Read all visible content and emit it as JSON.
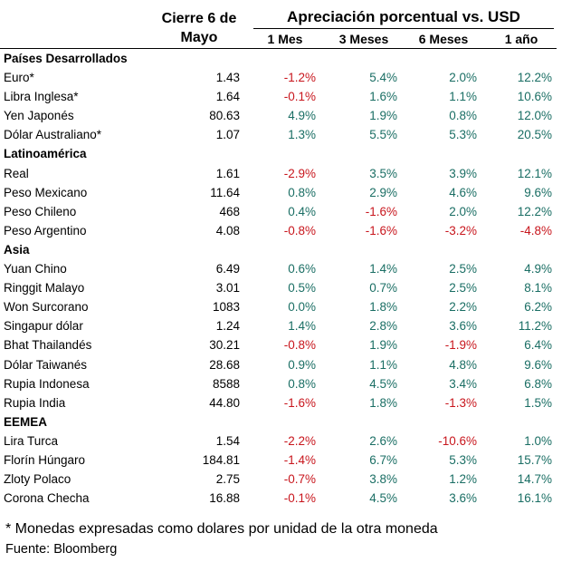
{
  "header": {
    "close_line1": "Cierre 6 de",
    "close_line2": "Mayo",
    "appreciation_title": "Apreciación porcentual vs. USD",
    "periods": [
      "1 Mes",
      "3 Meses",
      "6 Meses",
      "1 año"
    ]
  },
  "colors": {
    "positive": "#1a6e64",
    "negative": "#c8161d"
  },
  "rows": [
    {
      "type": "section",
      "name": "Países Desarrollados"
    },
    {
      "type": "data",
      "name": "Euro*",
      "close": "1.43",
      "m1": "-1.2%",
      "m3": "5.4%",
      "m6": "2.0%",
      "y1": "12.2%"
    },
    {
      "type": "data",
      "name": "Libra Inglesa*",
      "close": "1.64",
      "m1": "-0.1%",
      "m3": "1.6%",
      "m6": "1.1%",
      "y1": "10.6%"
    },
    {
      "type": "data",
      "name": "Yen Japonés",
      "close": "80.63",
      "m1": "4.9%",
      "m3": "1.9%",
      "m6": "0.8%",
      "y1": "12.0%"
    },
    {
      "type": "data",
      "name": "Dólar Australiano*",
      "close": "1.07",
      "m1": "1.3%",
      "m3": "5.5%",
      "m6": "5.3%",
      "y1": "20.5%"
    },
    {
      "type": "section",
      "name": "Latinoamérica"
    },
    {
      "type": "data",
      "name": "Real",
      "close": "1.61",
      "m1": "-2.9%",
      "m3": "3.5%",
      "m6": "3.9%",
      "y1": "12.1%"
    },
    {
      "type": "data",
      "name": "Peso Mexicano",
      "close": "11.64",
      "m1": "0.8%",
      "m3": "2.9%",
      "m6": "4.6%",
      "y1": "9.6%"
    },
    {
      "type": "data",
      "name": "Peso Chileno",
      "close": "468",
      "m1": "0.4%",
      "m3": "-1.6%",
      "m6": "2.0%",
      "y1": "12.2%"
    },
    {
      "type": "data",
      "name": "Peso Argentino",
      "close": "4.08",
      "m1": "-0.8%",
      "m3": "-1.6%",
      "m6": "-3.2%",
      "y1": "-4.8%"
    },
    {
      "type": "section",
      "name": "Asia"
    },
    {
      "type": "data",
      "name": "Yuan Chino",
      "close": "6.49",
      "m1": "0.6%",
      "m3": "1.4%",
      "m6": "2.5%",
      "y1": "4.9%"
    },
    {
      "type": "data",
      "name": "Ringgit Malayo",
      "close": "3.01",
      "m1": "0.5%",
      "m3": "0.7%",
      "m6": "2.5%",
      "y1": "8.1%"
    },
    {
      "type": "data",
      "name": "Won Surcorano",
      "close": "1083",
      "m1": "0.0%",
      "m3": "1.8%",
      "m6": "2.2%",
      "y1": "6.2%"
    },
    {
      "type": "data",
      "name": "Singapur dólar",
      "close": "1.24",
      "m1": "1.4%",
      "m3": "2.8%",
      "m6": "3.6%",
      "y1": "11.2%"
    },
    {
      "type": "data",
      "name": "Bhat Thailandés",
      "close": "30.21",
      "m1": "-0.8%",
      "m3": "1.9%",
      "m6": "-1.9%",
      "y1": "6.4%"
    },
    {
      "type": "data",
      "name": "Dólar Taiwanés",
      "close": "28.68",
      "m1": "0.9%",
      "m3": "1.1%",
      "m6": "4.8%",
      "y1": "9.6%"
    },
    {
      "type": "data",
      "name": "Rupia Indonesa",
      "close": "8588",
      "m1": "0.8%",
      "m3": "4.5%",
      "m6": "3.4%",
      "y1": "6.8%"
    },
    {
      "type": "data",
      "name": "Rupia India",
      "close": "44.80",
      "m1": "-1.6%",
      "m3": "1.8%",
      "m6": "-1.3%",
      "y1": "1.5%"
    },
    {
      "type": "section",
      "name": "EEMEA"
    },
    {
      "type": "data",
      "name": "Lira Turca",
      "close": "1.54",
      "m1": "-2.2%",
      "m3": "2.6%",
      "m6": "-10.6%",
      "y1": "1.0%"
    },
    {
      "type": "data",
      "name": "Florín Húngaro",
      "close": "184.81",
      "m1": "-1.4%",
      "m3": "6.7%",
      "m6": "5.3%",
      "y1": "15.7%"
    },
    {
      "type": "data",
      "name": "Zloty Polaco",
      "close": "2.75",
      "m1": "-0.7%",
      "m3": "3.8%",
      "m6": "1.2%",
      "y1": "14.7%"
    },
    {
      "type": "data",
      "name": "Corona Checha",
      "close": "16.88",
      "m1": "-0.1%",
      "m3": "4.5%",
      "m6": "3.6%",
      "y1": "16.1%"
    }
  ],
  "footnote": "* Monedas expresadas como dolares por unidad de la otra moneda",
  "source": "Fuente: Bloomberg"
}
